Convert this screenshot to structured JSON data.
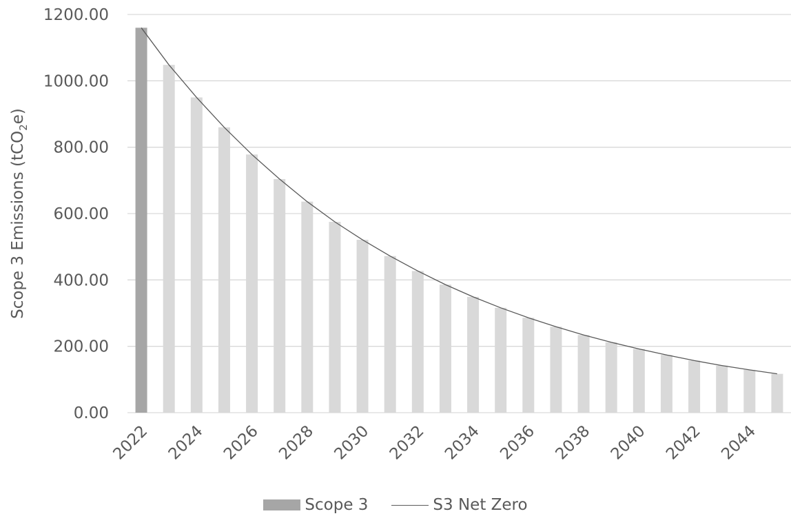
{
  "chart_data": {
    "type": "bar",
    "ylabel_main": "Scope 3 Emissions (tCO",
    "ylabel_sub": "2",
    "ylabel_end": "e)",
    "ylim": [
      0,
      1200
    ],
    "yticks": [
      "0.00",
      "200.00",
      "400.00",
      "600.00",
      "800.00",
      "1000.00",
      "1200.00"
    ],
    "ytick_values": [
      0,
      200,
      400,
      600,
      800,
      1000,
      1200
    ],
    "grid": true,
    "legend_position": "bottom",
    "categories": [
      "2022",
      "2023",
      "2024",
      "2025",
      "2026",
      "2027",
      "2028",
      "2029",
      "2030",
      "2031",
      "2032",
      "2033",
      "2034",
      "2035",
      "2036",
      "2037",
      "2038",
      "2039",
      "2040",
      "2041",
      "2042",
      "2043",
      "2044",
      "2045"
    ],
    "xtick_labels": [
      "2022",
      "",
      "2024",
      "",
      "2026",
      "",
      "2028",
      "",
      "2030",
      "",
      "2032",
      "",
      "2034",
      "",
      "2036",
      "",
      "2038",
      "",
      "2040",
      "",
      "2042",
      "",
      "2044",
      ""
    ],
    "series": [
      {
        "name": "Scope 3",
        "color": "#a6a6a6",
        "values": [
          1160,
          null,
          null,
          null,
          null,
          null,
          null,
          null,
          null,
          null,
          null,
          null,
          null,
          null,
          null,
          null,
          null,
          null,
          null,
          null,
          null,
          null,
          null,
          null
        ]
      },
      {
        "color": "#d9d9d9",
        "values": [
          null,
          1048,
          950,
          860,
          778,
          704,
          636,
          575,
          521,
          472,
          427,
          386,
          349,
          316,
          286,
          259,
          234,
          212,
          192,
          174,
          157,
          142,
          129,
          117
        ]
      },
      {
        "name": "S3 Net Zero",
        "type": "line",
        "color": "#595959",
        "values": [
          1160,
          1048,
          950,
          860,
          778,
          704,
          636,
          575,
          521,
          472,
          427,
          386,
          349,
          316,
          286,
          259,
          234,
          212,
          192,
          174,
          157,
          142,
          129,
          117
        ]
      }
    ]
  }
}
